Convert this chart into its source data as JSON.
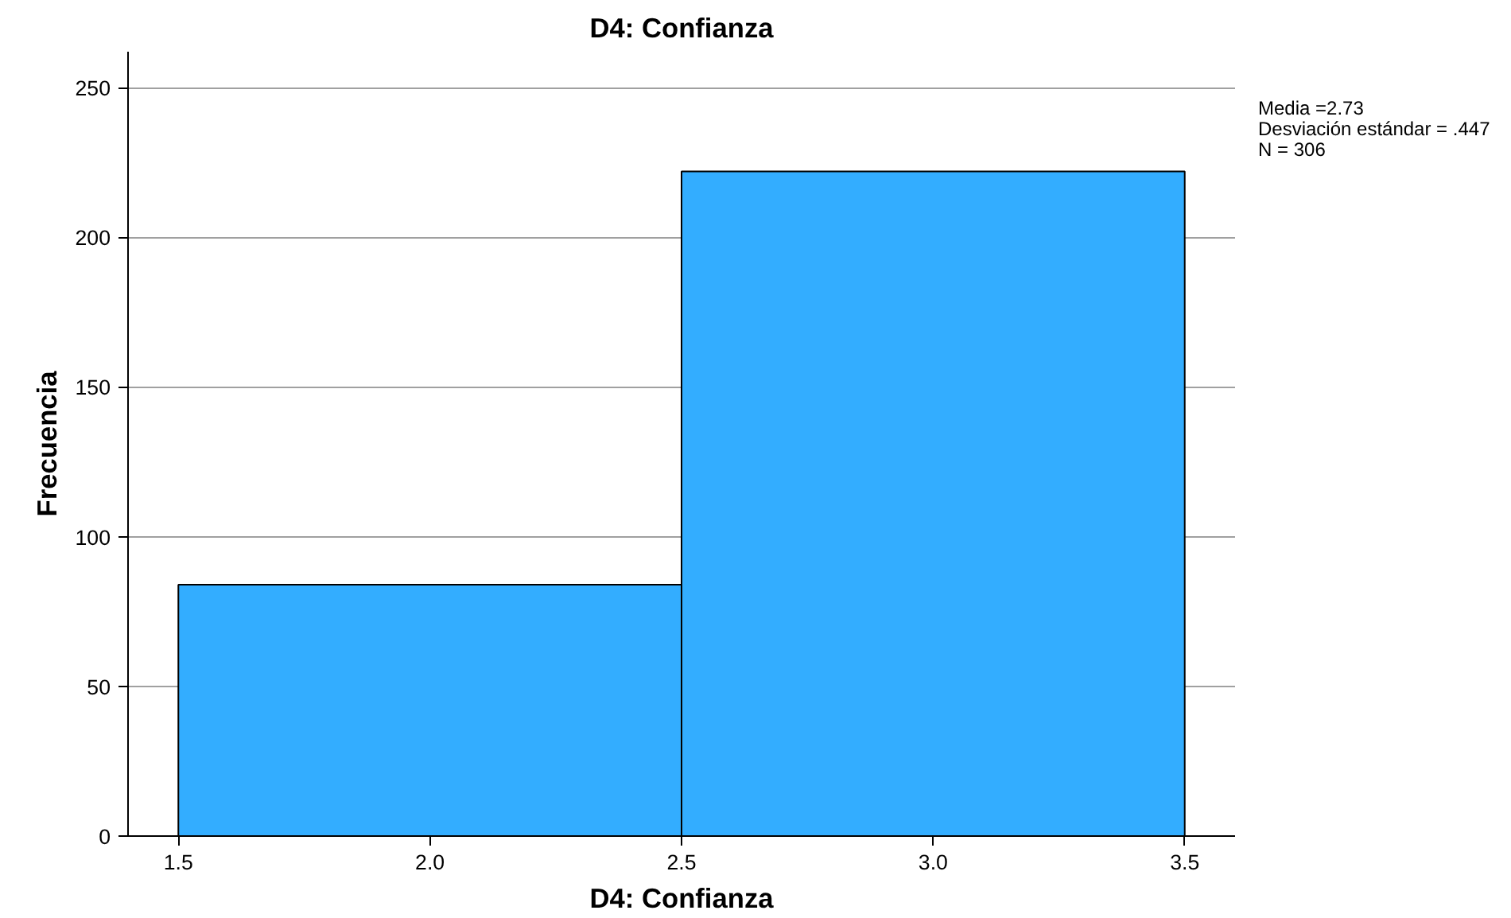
{
  "chart_data": {
    "type": "histogram",
    "title": "D4: Confianza",
    "xlabel": "D4: Confianza",
    "ylabel": "Frecuencia",
    "bins": [
      1.5,
      2.5,
      3.5
    ],
    "values": [
      84,
      222
    ],
    "color": "#33adff",
    "xlim": [
      1.4,
      3.6
    ],
    "ylim": [
      0,
      262
    ],
    "xticks": [
      1.5,
      {
        "value": 2,
        "label": "2.0"
      },
      2.5,
      {
        "value": 3,
        "label": "3.0"
      },
      3.5
    ],
    "yticks": [
      0,
      50,
      100,
      150,
      200,
      250
    ],
    "grid": "y",
    "annotations": [
      "Media =2.73",
      "Desviación estándar = .447",
      "N = 306"
    ]
  }
}
